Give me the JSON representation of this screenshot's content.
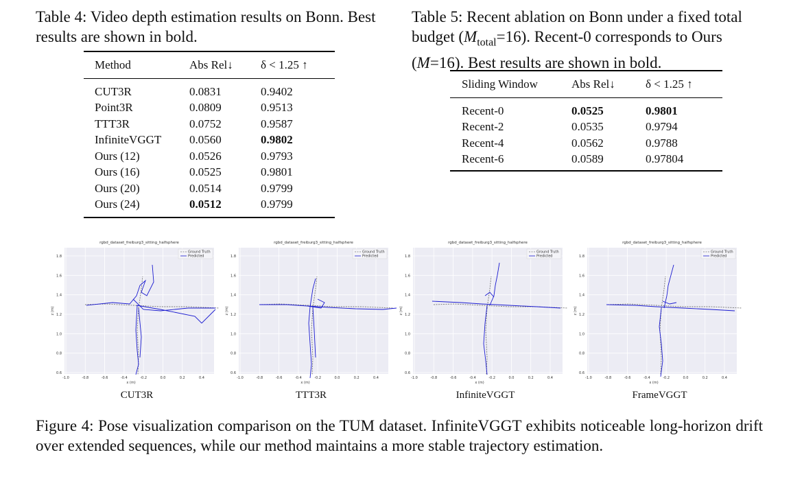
{
  "table4": {
    "caption": "Table 4: Video depth estimation results on Bonn. Best results are shown in bold.",
    "headers": [
      "Method",
      "Abs Rel↓",
      "δ < 1.25 ↑"
    ],
    "rows": [
      [
        "CUT3R",
        "0.0831",
        "0.9402"
      ],
      [
        "Point3R",
        "0.0809",
        "0.9513"
      ],
      [
        "TTT3R",
        "0.0752",
        "0.9587"
      ],
      [
        "InfiniteVGGT",
        "0.0560",
        "0.9802"
      ],
      [
        "Ours (12)",
        "0.0526",
        "0.9793"
      ],
      [
        "Ours (16)",
        "0.0525",
        "0.9801"
      ],
      [
        "Ours (20)",
        "0.0514",
        "0.9799"
      ],
      [
        "Ours (24)",
        "0.0512",
        "0.9799"
      ]
    ]
  },
  "table5": {
    "caption_part1": "Table 5: Recent ablation on Bonn under a fixed total budget (",
    "caption_m": "M",
    "caption_sub": "total",
    "caption_part2": "=16). Recent-0 corresponds to Ours (",
    "caption_m2": "M",
    "caption_part3": "=16). Best results are shown in bold.",
    "headers": [
      "Sliding Window",
      "Abs Rel↓",
      "δ < 1.25 ↑"
    ],
    "rows": [
      [
        "Recent-0",
        "0.0525",
        "0.9801"
      ],
      [
        "Recent-2",
        "0.0535",
        "0.9794"
      ],
      [
        "Recent-4",
        "0.0562",
        "0.9788"
      ],
      [
        "Recent-6",
        "0.0589",
        "0.97804"
      ]
    ]
  },
  "figure4": {
    "caption": "Figure 4: Pose visualization comparison on the TUM dataset. InfiniteVGGT exhibits noticeable long-horizon drift over extended sequences, while our method maintains a more stable trajectory estimation.",
    "plot_title": "rgbd_dataset_freiburg3_sitting_halfsphere",
    "xlabel": "x (m)",
    "ylabel": "z (m)",
    "legend": [
      "Ground Truth",
      "Predicted"
    ],
    "colors": {
      "ground_truth": "#777777",
      "predicted": "#1a1ad0",
      "background": "#ececf4"
    },
    "panels": [
      {
        "label": "CUT3R",
        "xticks": [
          "-1.0",
          "-0.8",
          "-0.6",
          "-0.4",
          "-0.2",
          "0.0",
          "0.2",
          "0.4"
        ],
        "yticks": [
          "1.8",
          "1.6",
          "1.4",
          "1.2",
          "1.0",
          "0.8",
          "0.6"
        ]
      },
      {
        "label": "TTT3R",
        "xticks": [
          "-1.0",
          "-0.8",
          "-0.6",
          "-0.4",
          "-0.2",
          "0.0",
          "0.2",
          "0.4"
        ],
        "yticks": [
          "1.8",
          "1.6",
          "1.4",
          "1.2",
          "1.0",
          "0.8",
          "0.6"
        ]
      },
      {
        "label": "InfiniteVGGT",
        "xticks": [
          "-1.0",
          "-0.8",
          "-0.6",
          "-0.4",
          "-0.2",
          "0.0",
          "0.2",
          "0.4"
        ],
        "yticks": [
          "1.8",
          "1.6",
          "1.4",
          "1.2",
          "1.0",
          "0.8",
          "0.6"
        ]
      },
      {
        "label": "FrameVGGT",
        "xticks": [
          "-1.0",
          "-0.8",
          "-0.6",
          "-0.4",
          "-0.2",
          "0.0",
          "0.2",
          "0.4"
        ],
        "yticks": [
          "1.8",
          "1.6",
          "1.4",
          "1.2",
          "1.0",
          "0.8",
          "0.6"
        ]
      }
    ]
  }
}
